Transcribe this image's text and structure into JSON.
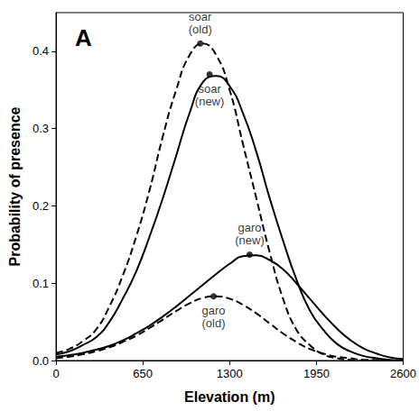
{
  "chart_data": {
    "type": "line",
    "title": "A",
    "x_label": "Elevation (m)",
    "y_label": "Probability of presence",
    "x": [
      0,
      100,
      200,
      300,
      400,
      500,
      600,
      700,
      800,
      900,
      1000,
      1100,
      1200,
      1300,
      1400,
      1500,
      1600,
      1700,
      1800,
      1900,
      2000,
      2100,
      2200,
      2300,
      2400,
      2500,
      2600
    ],
    "series": [
      {
        "name": "soar (old)",
        "color": "#000000",
        "line_style": "dashed",
        "marker": "circle",
        "values": [
          0.01,
          0.015,
          0.025,
          0.04,
          0.07,
          0.11,
          0.16,
          0.22,
          0.29,
          0.35,
          0.395,
          0.41,
          0.395,
          0.35,
          0.28,
          0.21,
          0.14,
          0.08,
          0.04,
          0.02,
          0.008,
          0.003,
          0.001,
          0,
          0,
          0,
          0
        ],
        "peak": {
          "x": 1080,
          "y": 0.41
        }
      },
      {
        "name": "soar (new)",
        "color": "#000000",
        "line_style": "solid",
        "marker": "circle",
        "values": [
          0.008,
          0.012,
          0.02,
          0.03,
          0.05,
          0.08,
          0.115,
          0.16,
          0.21,
          0.265,
          0.32,
          0.36,
          0.368,
          0.355,
          0.32,
          0.27,
          0.21,
          0.155,
          0.105,
          0.065,
          0.04,
          0.022,
          0.012,
          0.006,
          0.003,
          0.001,
          0
        ],
        "peak": {
          "x": 1150,
          "y": 0.37
        }
      },
      {
        "name": "garo (new)",
        "color": "#000000",
        "line_style": "solid",
        "marker": "circle",
        "values": [
          0.005,
          0.007,
          0.01,
          0.014,
          0.019,
          0.026,
          0.035,
          0.045,
          0.057,
          0.07,
          0.084,
          0.098,
          0.112,
          0.125,
          0.135,
          0.136,
          0.13,
          0.118,
          0.1,
          0.08,
          0.06,
          0.042,
          0.027,
          0.016,
          0.009,
          0.004,
          0.002
        ],
        "peak": {
          "x": 1450,
          "y": 0.137
        }
      },
      {
        "name": "garo (old)",
        "color": "#000000",
        "line_style": "dashed",
        "marker": "circle",
        "values": [
          0.003,
          0.005,
          0.008,
          0.012,
          0.017,
          0.024,
          0.032,
          0.042,
          0.053,
          0.064,
          0.074,
          0.081,
          0.083,
          0.08,
          0.072,
          0.061,
          0.048,
          0.035,
          0.024,
          0.015,
          0.009,
          0.005,
          0.003,
          0.001,
          0.001,
          0,
          0
        ],
        "peak": {
          "x": 1180,
          "y": 0.083
        }
      }
    ],
    "xlim": [
      0,
      2600
    ],
    "ylim": [
      0,
      0.45
    ],
    "xticks": [
      0,
      650,
      1300,
      1950,
      2600
    ],
    "yticks": [
      {
        "value": 0,
        "label": "0.0"
      },
      0.1,
      0.2,
      0.3,
      0.4
    ],
    "grid": false
  }
}
